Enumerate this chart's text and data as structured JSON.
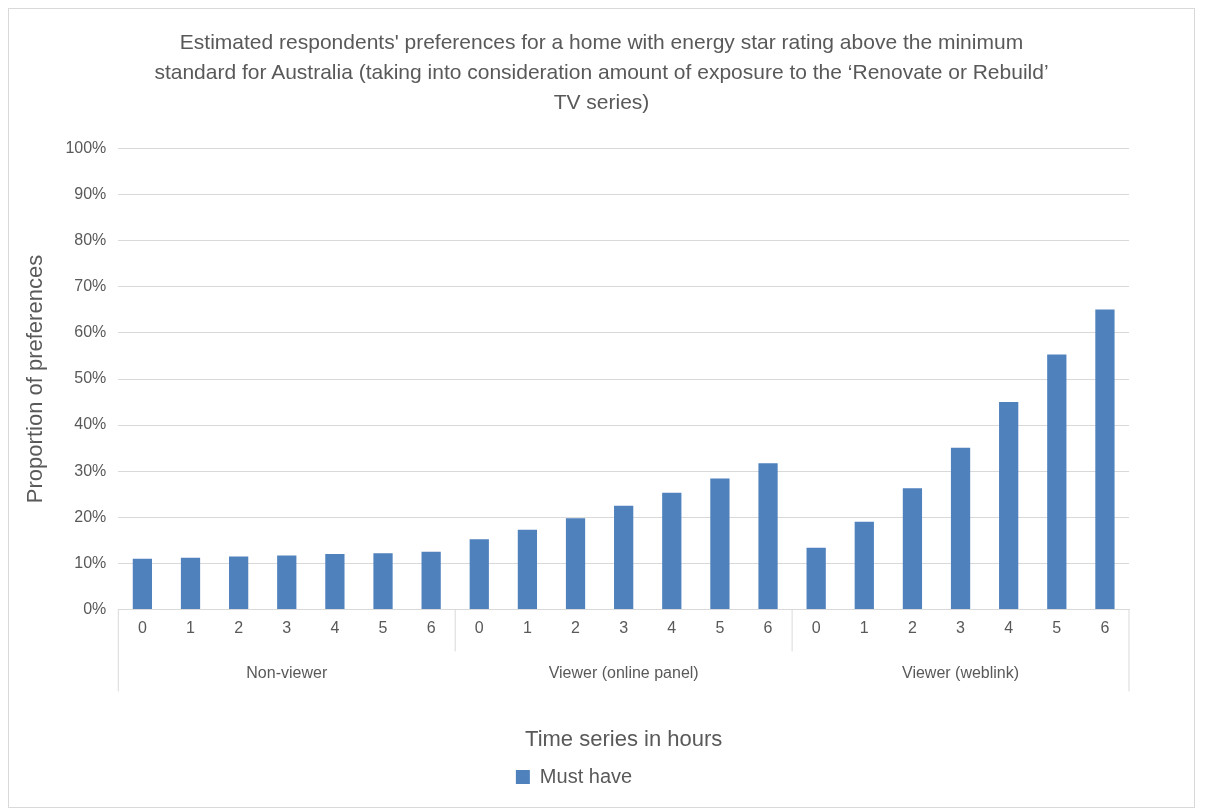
{
  "chart_data": {
    "type": "bar",
    "title": "Estimated respondents' preferences for a home with energy star rating above the minimum standard for Australia (taking into consideration amount of exposure to the ‘Renovate or Rebuild’ TV series)",
    "xlabel": "Time series in hours",
    "ylabel": "Proportion of preferences",
    "categories": [
      "0",
      "1",
      "2",
      "3",
      "4",
      "5",
      "6",
      "0",
      "1",
      "2",
      "3",
      "4",
      "5",
      "6",
      "0",
      "1",
      "2",
      "3",
      "4",
      "5",
      "6"
    ],
    "series": [
      {
        "name": "Must have",
        "color": "#4f81bd",
        "values": [
          11.0,
          11.2,
          11.5,
          11.7,
          12.0,
          12.2,
          12.5,
          15.2,
          17.3,
          19.8,
          22.5,
          25.3,
          28.4,
          31.7,
          13.4,
          19.0,
          26.3,
          35.1,
          45.0,
          55.3,
          65.1
        ]
      }
    ],
    "annotations": [
      "Non-viewer",
      "Viewer (online panel)",
      "Viewer (weblink)"
    ],
    "ylim": [
      0,
      100
    ],
    "yticks": [
      {
        "value": 0,
        "label": "0%"
      },
      {
        "value": 10,
        "label": "10%"
      },
      {
        "value": 20,
        "label": "20%"
      },
      {
        "value": 30,
        "label": "30%"
      },
      {
        "value": 40,
        "label": "40%"
      },
      {
        "value": 50,
        "label": "50%"
      },
      {
        "value": 60,
        "label": "60%"
      },
      {
        "value": 70,
        "label": "70%"
      },
      {
        "value": 80,
        "label": "80%"
      },
      {
        "value": 90,
        "label": "90%"
      },
      {
        "value": 100,
        "label": "100%"
      }
    ],
    "grid": "y",
    "legend": "bottom"
  }
}
